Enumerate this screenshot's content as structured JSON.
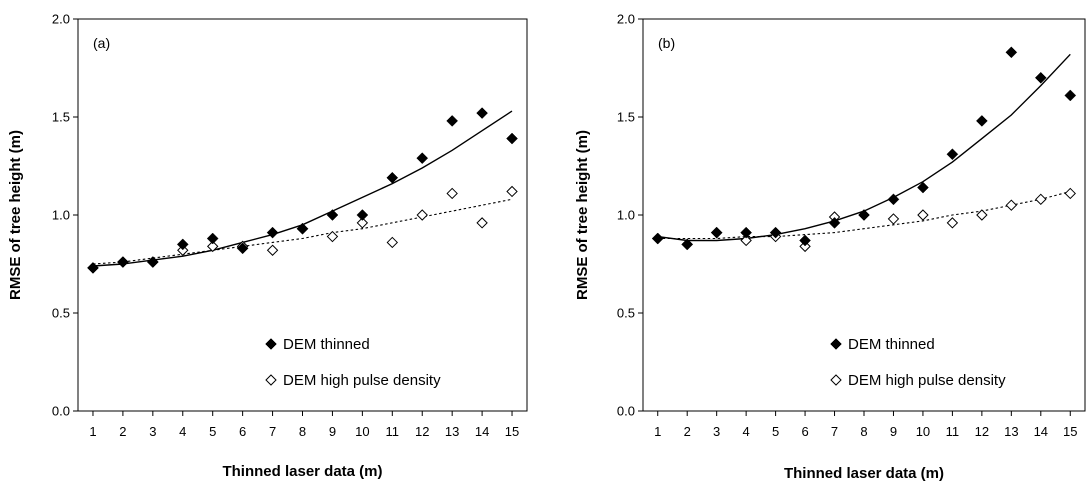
{
  "chart_data": [
    {
      "type": "scatter",
      "panel_label": "(a)",
      "xlabel": "Thinned laser data (m)",
      "ylabel": "RMSE of tree height (m)",
      "xlim": [
        0.5,
        15.5
      ],
      "ylim": [
        0,
        2
      ],
      "x_ticks": [
        "1",
        "2",
        "3",
        "4",
        "5",
        "6",
        "7",
        "8",
        "9",
        "10",
        "11",
        "12",
        "13",
        "14",
        "15"
      ],
      "y_ticks": [
        "0.0",
        "0.5",
        "1.0",
        "1.5",
        "2.0"
      ],
      "legend_position": "lower-right",
      "series": [
        {
          "name": "DEM thinned",
          "marker": "filled-diamond",
          "x": [
            1,
            2,
            3,
            4,
            5,
            6,
            7,
            8,
            9,
            10,
            11,
            12,
            13,
            14,
            15
          ],
          "values": [
            0.73,
            0.76,
            0.76,
            0.85,
            0.88,
            0.83,
            0.91,
            0.93,
            1.0,
            1.0,
            1.19,
            1.29,
            1.48,
            1.52,
            1.39
          ],
          "trend": "solid",
          "trend_values": [
            0.74,
            0.75,
            0.77,
            0.79,
            0.82,
            0.86,
            0.9,
            0.95,
            1.02,
            1.09,
            1.16,
            1.24,
            1.33,
            1.43,
            1.53
          ]
        },
        {
          "name": "DEM high pulse density",
          "marker": "open-diamond",
          "x": [
            1,
            2,
            3,
            4,
            5,
            6,
            7,
            8,
            9,
            10,
            11,
            12,
            13,
            14,
            15
          ],
          "values": [
            0.73,
            0.76,
            0.76,
            0.82,
            0.84,
            0.84,
            0.82,
            0.93,
            0.89,
            0.96,
            0.86,
            1.0,
            1.11,
            0.96,
            1.12
          ],
          "trend": "dotted",
          "trend_values": [
            0.75,
            0.76,
            0.78,
            0.8,
            0.82,
            0.84,
            0.86,
            0.88,
            0.91,
            0.93,
            0.96,
            0.99,
            1.02,
            1.05,
            1.08
          ]
        }
      ]
    },
    {
      "type": "scatter",
      "panel_label": "(b)",
      "xlabel": "Thinned laser data (m)",
      "ylabel": "RMSE of tree height (m)",
      "xlim": [
        0.5,
        15.5
      ],
      "ylim": [
        0,
        2
      ],
      "x_ticks": [
        "1",
        "2",
        "3",
        "4",
        "5",
        "6",
        "7",
        "8",
        "9",
        "10",
        "11",
        "12",
        "13",
        "14",
        "15"
      ],
      "y_ticks": [
        "0.0",
        "0.5",
        "1.0",
        "1.5",
        "2.0"
      ],
      "legend_position": "lower-right",
      "series": [
        {
          "name": "DEM thinned",
          "marker": "filled-diamond",
          "x": [
            1,
            2,
            3,
            4,
            5,
            6,
            7,
            8,
            9,
            10,
            11,
            12,
            13,
            14,
            15
          ],
          "values": [
            0.88,
            0.85,
            0.91,
            0.91,
            0.91,
            0.87,
            0.96,
            1.0,
            1.08,
            1.14,
            1.31,
            1.48,
            1.83,
            1.7,
            1.61
          ],
          "trend": "solid",
          "trend_values": [
            0.89,
            0.87,
            0.87,
            0.88,
            0.9,
            0.93,
            0.97,
            1.02,
            1.09,
            1.17,
            1.27,
            1.39,
            1.51,
            1.66,
            1.82
          ]
        },
        {
          "name": "DEM high pulse density",
          "marker": "open-diamond",
          "x": [
            1,
            2,
            3,
            4,
            5,
            6,
            7,
            8,
            9,
            10,
            11,
            12,
            13,
            14,
            15
          ],
          "values": [
            0.88,
            0.85,
            0.91,
            0.87,
            0.89,
            0.84,
            0.99,
            1.0,
            0.98,
            1.0,
            0.96,
            1.0,
            1.05,
            1.08,
            1.11
          ],
          "trend": "dotted",
          "trend_values": [
            0.88,
            0.88,
            0.88,
            0.89,
            0.89,
            0.9,
            0.91,
            0.93,
            0.95,
            0.97,
            1.0,
            1.02,
            1.05,
            1.08,
            1.12
          ]
        }
      ]
    }
  ]
}
